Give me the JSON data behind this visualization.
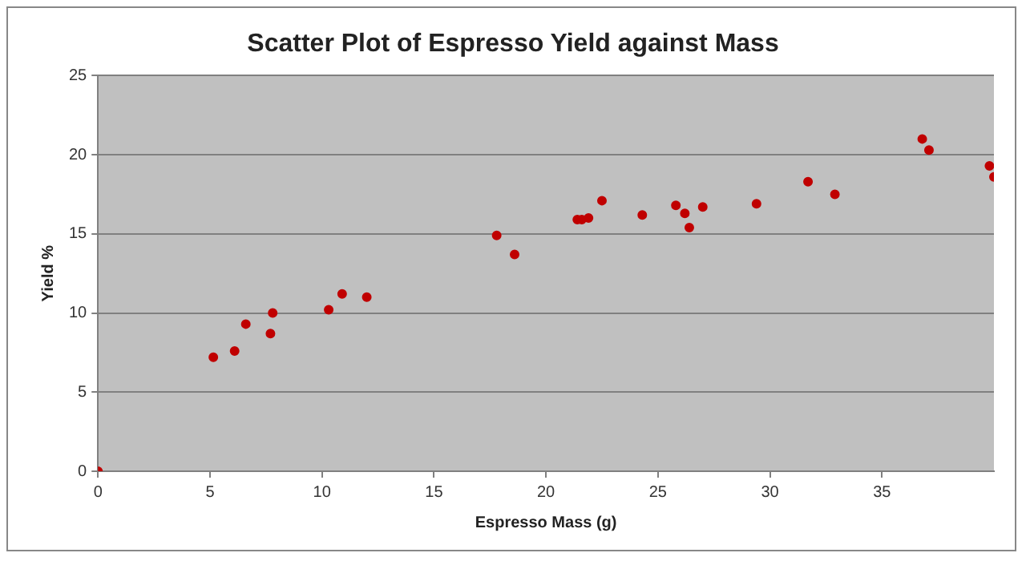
{
  "chart_data": {
    "type": "scatter",
    "title": "Scatter Plot of Espresso Yield against Mass",
    "xlabel": "Espresso Mass (g)",
    "ylabel": "Yield %",
    "x": [
      0,
      5.15,
      6.1,
      6.6,
      7.7,
      7.8,
      10.3,
      10.9,
      12.0,
      17.8,
      18.6,
      21.4,
      21.6,
      21.9,
      22.5,
      24.3,
      25.8,
      26.2,
      26.4,
      27.0,
      29.4,
      31.7,
      32.9,
      36.8,
      37.1,
      39.8,
      40.0
    ],
    "series": [
      {
        "color": "#c00000",
        "values": [
          0,
          7.2,
          7.6,
          9.3,
          8.7,
          10.0,
          10.2,
          11.2,
          11.0,
          14.9,
          13.7,
          15.9,
          15.9,
          16.0,
          17.1,
          16.2,
          16.8,
          16.3,
          15.4,
          16.7,
          16.9,
          18.3,
          17.5,
          21.0,
          20.3,
          19.3,
          18.6
        ]
      }
    ],
    "xlim": [
      0,
      40
    ],
    "xticks": [
      0,
      5,
      10,
      15,
      20,
      25,
      30,
      35
    ],
    "ylim": [
      0,
      25
    ],
    "yticks": [
      0,
      5,
      10,
      15,
      20,
      25
    ],
    "grid": "y",
    "legend": false,
    "marker": "circle"
  }
}
